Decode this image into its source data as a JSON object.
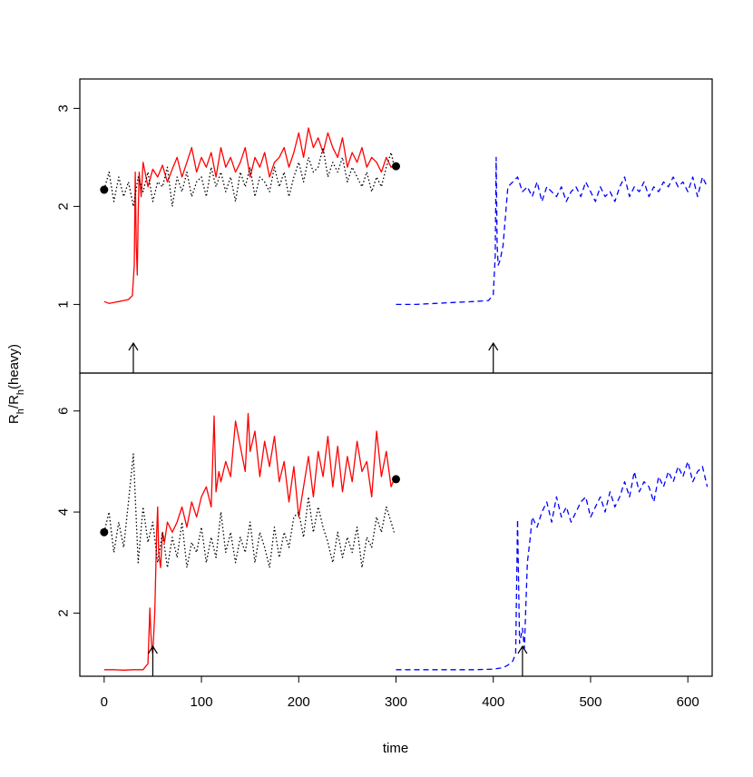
{
  "chart_data": {
    "type": "line",
    "xlabel": "time",
    "ylabel": {
      "base": "R",
      "sub": "h",
      "sep": "/R",
      "sub2": "h",
      "tail": "(heavy)"
    },
    "xlim": [
      -25,
      625
    ],
    "x_ticks": [
      0,
      100,
      200,
      300,
      400,
      500,
      600
    ],
    "grid": false,
    "colors": {
      "red": "#ff0000",
      "black": "#000000",
      "blue": "#0000ff"
    },
    "panels": [
      {
        "position": "top",
        "ylim": [
          0.3,
          3.3
        ],
        "y_ticks": [
          1,
          2,
          3
        ],
        "markers": [
          {
            "x": 0,
            "y": 2.17
          },
          {
            "x": 300,
            "y": 2.41
          }
        ],
        "arrows": [
          {
            "x": 30
          },
          {
            "x": 400
          }
        ],
        "series": [
          {
            "color": "red",
            "style": "solid",
            "x": [
              0,
              5,
              10,
              15,
              20,
              25,
              29,
              31,
              32,
              33,
              34,
              35,
              36,
              38,
              40,
              45,
              50,
              55,
              60,
              65,
              70,
              75,
              80,
              85,
              90,
              95,
              100,
              105,
              110,
              115,
              120,
              125,
              130,
              135,
              140,
              145,
              150,
              155,
              160,
              165,
              170,
              175,
              180,
              185,
              190,
              195,
              200,
              205,
              210,
              215,
              220,
              225,
              230,
              235,
              240,
              245,
              250,
              255,
              260,
              265,
              270,
              275,
              280,
              285,
              290,
              295,
              298
            ],
            "y": [
              1.03,
              1.01,
              1.02,
              1.03,
              1.04,
              1.05,
              1.09,
              1.4,
              2.35,
              1.6,
              1.3,
              1.9,
              2.35,
              2.1,
              2.45,
              2.2,
              2.38,
              2.3,
              2.42,
              2.25,
              2.38,
              2.5,
              2.3,
              2.45,
              2.6,
              2.35,
              2.5,
              2.4,
              2.55,
              2.3,
              2.6,
              2.4,
              2.5,
              2.35,
              2.45,
              2.6,
              2.3,
              2.5,
              2.4,
              2.55,
              2.3,
              2.45,
              2.5,
              2.6,
              2.4,
              2.55,
              2.75,
              2.5,
              2.8,
              2.6,
              2.7,
              2.55,
              2.75,
              2.6,
              2.5,
              2.7,
              2.4,
              2.55,
              2.45,
              2.6,
              2.4,
              2.5,
              2.45,
              2.35,
              2.5,
              2.4,
              2.42
            ]
          },
          {
            "color": "black",
            "style": "dotted",
            "x": [
              0,
              5,
              10,
              15,
              20,
              25,
              30,
              35,
              40,
              45,
              50,
              55,
              60,
              65,
              70,
              75,
              80,
              85,
              90,
              95,
              100,
              105,
              110,
              115,
              120,
              125,
              130,
              135,
              140,
              145,
              150,
              155,
              160,
              165,
              170,
              175,
              180,
              185,
              190,
              195,
              200,
              205,
              210,
              215,
              220,
              225,
              230,
              235,
              240,
              245,
              250,
              255,
              260,
              265,
              270,
              275,
              280,
              285,
              290,
              295,
              298
            ],
            "y": [
              2.17,
              2.35,
              2.05,
              2.3,
              2.1,
              2.25,
              2.0,
              2.3,
              2.15,
              2.35,
              2.05,
              2.25,
              2.2,
              2.4,
              2.0,
              2.3,
              2.15,
              2.35,
              2.1,
              2.25,
              2.3,
              2.1,
              2.4,
              2.2,
              2.35,
              2.15,
              2.3,
              2.05,
              2.35,
              2.2,
              2.4,
              2.1,
              2.3,
              2.25,
              2.15,
              2.4,
              2.2,
              2.35,
              2.1,
              2.3,
              2.45,
              2.25,
              2.5,
              2.35,
              2.4,
              2.6,
              2.3,
              2.45,
              2.35,
              2.5,
              2.25,
              2.4,
              2.3,
              2.2,
              2.35,
              2.15,
              2.3,
              2.2,
              2.4,
              2.55,
              2.41
            ]
          },
          {
            "color": "blue",
            "style": "dashed",
            "x": [
              300,
              320,
              340,
              360,
              380,
              395,
              400,
              402,
              403,
              404,
              405,
              407,
              410,
              415,
              420,
              425,
              430,
              435,
              440,
              445,
              450,
              455,
              460,
              465,
              470,
              475,
              480,
              485,
              490,
              495,
              500,
              505,
              510,
              515,
              520,
              525,
              530,
              535,
              540,
              545,
              550,
              555,
              560,
              565,
              570,
              575,
              580,
              585,
              590,
              595,
              600,
              605,
              610,
              615,
              620
            ],
            "y": [
              1.0,
              1.0,
              1.01,
              1.02,
              1.03,
              1.04,
              1.1,
              1.5,
              2.5,
              1.6,
              1.4,
              1.45,
              1.6,
              2.2,
              2.25,
              2.3,
              2.15,
              2.2,
              2.1,
              2.25,
              2.05,
              2.2,
              2.15,
              2.1,
              2.2,
              2.05,
              2.15,
              2.2,
              2.1,
              2.25,
              2.15,
              2.05,
              2.2,
              2.1,
              2.15,
              2.05,
              2.2,
              2.3,
              2.1,
              2.2,
              2.15,
              2.25,
              2.1,
              2.2,
              2.15,
              2.25,
              2.2,
              2.3,
              2.2,
              2.25,
              2.15,
              2.3,
              2.1,
              2.3,
              2.2
            ]
          }
        ]
      },
      {
        "position": "bottom",
        "ylim": [
          0.75,
          6.75
        ],
        "y_ticks": [
          2,
          4,
          6
        ],
        "markers": [
          {
            "x": 0,
            "y": 3.6
          },
          {
            "x": 300,
            "y": 4.65
          }
        ],
        "arrows": [
          {
            "x": 50
          },
          {
            "x": 430
          }
        ],
        "series": [
          {
            "color": "red",
            "style": "solid",
            "x": [
              0,
              10,
              20,
              30,
              40,
              45,
              47,
              48,
              49,
              50,
              52,
              54,
              55,
              56,
              58,
              60,
              62,
              65,
              70,
              75,
              80,
              85,
              90,
              95,
              100,
              105,
              110,
              113,
              115,
              118,
              120,
              125,
              130,
              135,
              140,
              145,
              148,
              150,
              155,
              160,
              165,
              170,
              175,
              180,
              185,
              190,
              195,
              200,
              205,
              210,
              215,
              220,
              225,
              230,
              235,
              240,
              245,
              250,
              255,
              260,
              265,
              270,
              275,
              280,
              285,
              290,
              295,
              298
            ],
            "y": [
              0.88,
              0.88,
              0.87,
              0.88,
              0.88,
              1.0,
              2.1,
              1.6,
              1.3,
              1.2,
              2.0,
              3.6,
              4.1,
              3.2,
              2.9,
              3.6,
              3.4,
              3.8,
              3.6,
              3.8,
              4.1,
              3.7,
              4.2,
              3.9,
              4.3,
              4.5,
              4.1,
              5.9,
              4.4,
              4.8,
              4.6,
              5.0,
              4.7,
              5.8,
              5.3,
              4.8,
              5.95,
              5.2,
              5.6,
              4.7,
              5.4,
              4.9,
              5.5,
              4.6,
              5.0,
              4.2,
              4.9,
              3.9,
              4.5,
              5.1,
              4.3,
              5.2,
              4.7,
              5.5,
              4.5,
              5.3,
              4.4,
              5.1,
              4.6,
              5.4,
              4.8,
              5.0,
              4.3,
              5.6,
              4.7,
              5.2,
              4.5,
              4.65
            ]
          },
          {
            "color": "black",
            "style": "dotted",
            "x": [
              0,
              5,
              10,
              15,
              20,
              25,
              30,
              35,
              40,
              45,
              50,
              55,
              60,
              65,
              70,
              75,
              80,
              85,
              90,
              95,
              100,
              105,
              110,
              115,
              120,
              125,
              130,
              135,
              140,
              145,
              150,
              155,
              160,
              165,
              170,
              175,
              180,
              185,
              190,
              195,
              200,
              205,
              210,
              215,
              220,
              225,
              230,
              235,
              240,
              245,
              250,
              255,
              260,
              265,
              270,
              275,
              280,
              285,
              290,
              295,
              298
            ],
            "y": [
              3.6,
              4.0,
              3.2,
              3.8,
              3.3,
              4.2,
              5.15,
              3.0,
              4.1,
              3.4,
              3.8,
              3.0,
              3.6,
              2.9,
              3.5,
              3.1,
              3.8,
              2.9,
              3.4,
              3.2,
              3.7,
              3.0,
              3.5,
              3.1,
              4.0,
              3.2,
              3.6,
              3.0,
              3.5,
              3.2,
              3.8,
              3.0,
              3.6,
              3.3,
              2.9,
              3.7,
              3.1,
              3.6,
              3.3,
              3.9,
              4.0,
              3.5,
              4.3,
              3.6,
              4.1,
              3.7,
              3.4,
              3.0,
              3.6,
              3.1,
              3.5,
              3.2,
              3.7,
              2.9,
              3.5,
              3.3,
              3.9,
              3.6,
              4.1,
              3.8,
              3.6
            ]
          },
          {
            "color": "blue",
            "style": "dashed",
            "x": [
              300,
              320,
              340,
              360,
              380,
              400,
              410,
              415,
              420,
              423,
              425,
              427,
              428,
              430,
              432,
              435,
              438,
              440,
              445,
              450,
              455,
              460,
              465,
              470,
              475,
              480,
              485,
              490,
              495,
              500,
              505,
              510,
              515,
              520,
              525,
              530,
              535,
              540,
              545,
              550,
              555,
              560,
              565,
              570,
              575,
              580,
              585,
              590,
              595,
              600,
              605,
              610,
              615,
              620
            ],
            "y": [
              0.88,
              0.88,
              0.88,
              0.88,
              0.88,
              0.89,
              0.92,
              0.97,
              1.05,
              1.2,
              3.85,
              1.4,
              1.5,
              1.7,
              1.3,
              3.0,
              3.5,
              3.9,
              3.7,
              4.0,
              4.2,
              3.8,
              4.3,
              3.9,
              4.1,
              3.8,
              4.0,
              4.2,
              4.3,
              3.9,
              4.1,
              4.3,
              4.0,
              4.4,
              4.1,
              4.3,
              4.6,
              4.3,
              4.8,
              4.4,
              4.6,
              4.5,
              4.2,
              4.7,
              4.5,
              4.8,
              4.6,
              4.9,
              4.7,
              5.0,
              4.6,
              4.8,
              4.9,
              4.5
            ]
          }
        ]
      }
    ]
  }
}
